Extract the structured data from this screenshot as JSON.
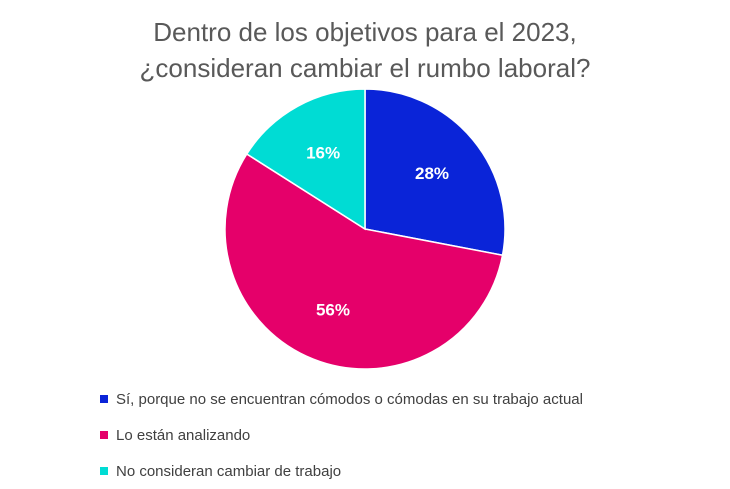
{
  "chart_data": {
    "type": "pie",
    "title_lines": [
      "Dentro de los objetivos para el 2023,",
      "¿consideran cambiar el rumbo laboral?"
    ],
    "slices": [
      {
        "label": "Sí, porque no se encuentran cómodos o cómodas en su trabajo actual",
        "value": 28,
        "display": "28%",
        "color": "#0a24d8"
      },
      {
        "label": "Lo están analizando",
        "value": 56,
        "display": "56%",
        "color": "#e5006a"
      },
      {
        "label": "No consideran cambiar de trabajo",
        "value": 16,
        "display": "16%",
        "color": "#00dcd4"
      }
    ],
    "legend_position": "bottom-left",
    "start_angle": "12 o'clock",
    "direction": "clockwise"
  }
}
